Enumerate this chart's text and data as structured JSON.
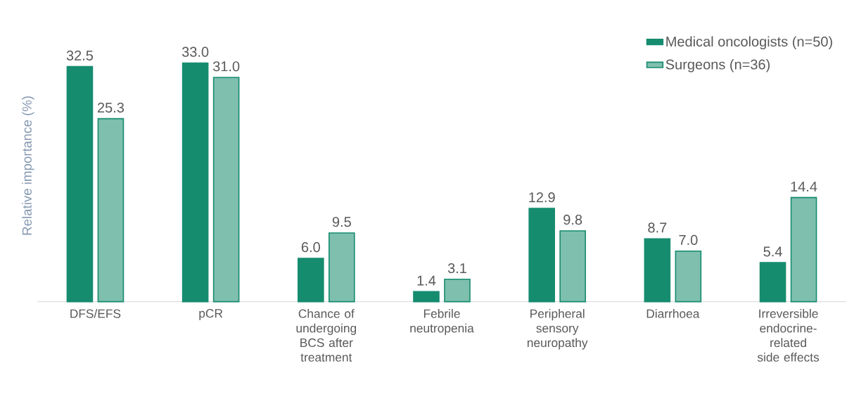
{
  "chart_data": {
    "type": "bar",
    "ylabel": "Relative importance (%)",
    "categories": [
      "DFS/EFS",
      "pCR",
      "Chance of undergoing BCS after treatment",
      "Febrile neutropenia",
      "Peripheral sensory neuropathy",
      "Diarrhoea",
      "Irreversible endocrine-related side effects"
    ],
    "series": [
      {
        "name": "Medical oncologists (n=50)",
        "color": "#168c6f",
        "values": [
          32.5,
          33.0,
          6.0,
          1.4,
          12.9,
          8.7,
          5.4
        ],
        "value_labels": [
          "32.5",
          "33.0",
          "6.0",
          "1.4",
          "12.9",
          "8.7",
          "5.4"
        ]
      },
      {
        "name": "Surgeons (n=36)",
        "color": "#7fbfae",
        "values": [
          25.3,
          31.0,
          9.5,
          3.1,
          9.8,
          7.0,
          14.4
        ],
        "value_labels": [
          "25.3",
          "31.0",
          "9.5",
          "3.1",
          "9.8",
          "7.0",
          "14.4"
        ]
      }
    ],
    "legend": "top right"
  }
}
